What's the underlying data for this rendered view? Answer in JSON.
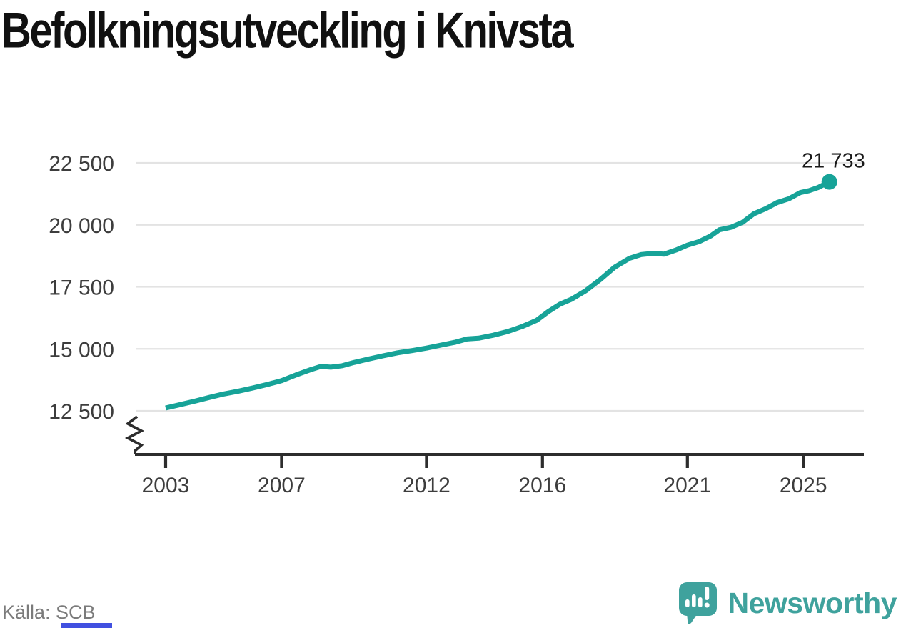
{
  "title": "Befolkningsutveckling i Knivsta",
  "source": "Källa: SCB",
  "branding": {
    "name": "Newsworthy",
    "icon": "newsworthy-bubble-chart-icon"
  },
  "colors": {
    "line": "#17a398",
    "grid": "#e3e3e3",
    "axis": "#2d2d2d",
    "title": "#111111",
    "tick_label": "#3d3d3d",
    "annotation": "#1a1a1a",
    "source_text": "#7b7b7b",
    "source_underline": "#4150e0",
    "brand": "#3fa29d",
    "background": "#ffffff"
  },
  "chart_data": {
    "type": "line",
    "title": "Befolkningsutveckling i Knivsta",
    "xlabel": "",
    "ylabel": "",
    "grid": "horizontal",
    "axis_break": true,
    "legend": "none",
    "xlim": [
      2003,
      2027
    ],
    "ylim": [
      12500,
      22500
    ],
    "x_ticks": {
      "values": [
        2003,
        2007,
        2012,
        2016,
        2021,
        2025
      ],
      "labels": [
        "2003",
        "2007",
        "2012",
        "2016",
        "2021",
        "2025"
      ]
    },
    "y_ticks": {
      "values": [
        12500,
        15000,
        17500,
        20000,
        22500
      ],
      "labels": [
        "12 500",
        "15 000",
        "17 500",
        "20 000",
        "22 500"
      ]
    },
    "x": [
      2003.0,
      2003.5,
      2004.0,
      2004.5,
      2005.0,
      2005.5,
      2006.0,
      2006.5,
      2007.0,
      2007.5,
      2008.0,
      2008.35,
      2008.7,
      2009.1,
      2009.5,
      2010.0,
      2010.5,
      2011.0,
      2011.5,
      2012.0,
      2012.5,
      2013.0,
      2013.4,
      2013.8,
      2014.3,
      2014.8,
      2015.3,
      2015.8,
      2016.2,
      2016.6,
      2017.0,
      2017.5,
      2018.0,
      2018.5,
      2019.0,
      2019.4,
      2019.8,
      2020.2,
      2020.6,
      2021.0,
      2021.4,
      2021.8,
      2022.1,
      2022.5,
      2022.9,
      2023.3,
      2023.7,
      2024.1,
      2024.5,
      2024.9,
      2025.2,
      2025.5,
      2025.9
    ],
    "y": [
      12615,
      12750,
      12890,
      13040,
      13180,
      13290,
      13420,
      13560,
      13720,
      13950,
      14160,
      14290,
      14260,
      14320,
      14450,
      14590,
      14720,
      14840,
      14930,
      15030,
      15150,
      15270,
      15400,
      15430,
      15550,
      15700,
      15900,
      16150,
      16500,
      16800,
      17000,
      17350,
      17800,
      18300,
      18650,
      18800,
      18850,
      18820,
      18980,
      19180,
      19320,
      19550,
      19800,
      19900,
      20100,
      20450,
      20650,
      20900,
      21050,
      21300,
      21380,
      21500,
      21733
    ],
    "end_value": 21733,
    "end_label": "21 733"
  }
}
